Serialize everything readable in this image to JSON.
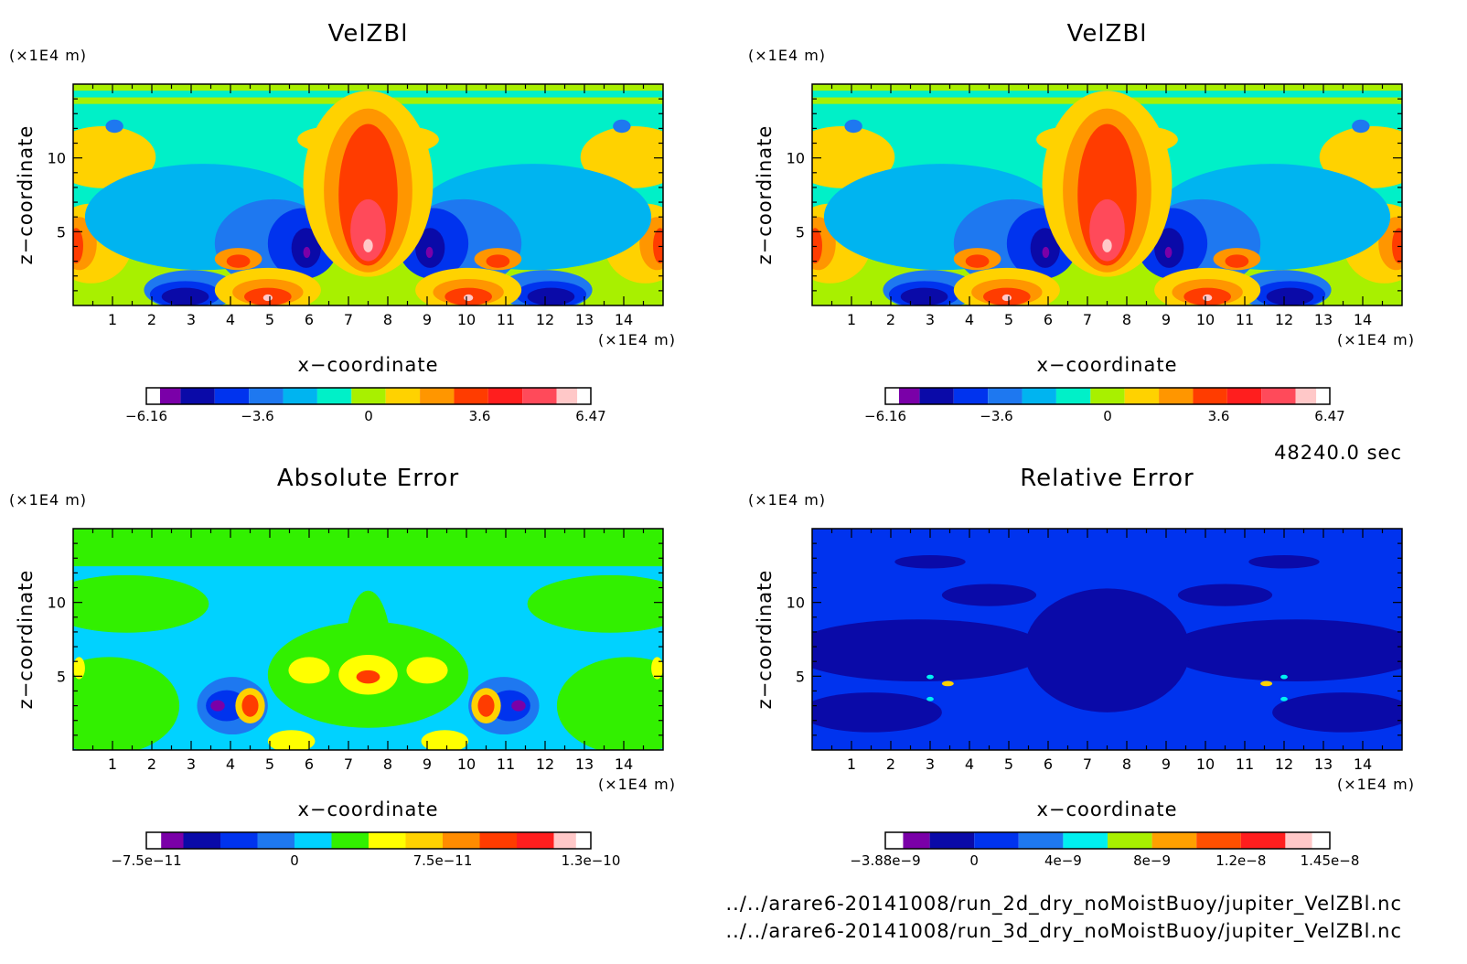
{
  "time_label": "48240.0 sec",
  "files": [
    "../../arare6-20141008/run_2d_dry_noMoistBuoy/jupiter_VelZBl.nc",
    "../../arare6-20141008/run_3d_dry_noMoistBuoy/jupiter_VelZBl.nc"
  ],
  "chart_data": [
    {
      "type": "heatmap",
      "title": "VelZBl",
      "xlabel": "x−coordinate",
      "ylabel": "z−coordinate",
      "x_unit": "(×1E4 m)",
      "y_unit": "(×1E4 m)",
      "xlim": [
        0,
        15
      ],
      "ylim": [
        0,
        15
      ],
      "x_ticks": [
        "1",
        "2",
        "3",
        "4",
        "5",
        "6",
        "7",
        "8",
        "9",
        "10",
        "11",
        "12",
        "13",
        "14"
      ],
      "y_ticks": [
        "5",
        "10"
      ],
      "colorbar": {
        "colors": [
          "#7a00a8",
          "#0a0aa8",
          "#0033ee",
          "#1e78f0",
          "#00b4f0",
          "#00f0c8",
          "#a8f000",
          "#ffd200",
          "#ff9600",
          "#ff3c00",
          "#ff1e1e",
          "#ff4a5a",
          "#ffc8c8"
        ],
        "tick_labels": [
          "−6.16",
          "−3.6",
          "0",
          "3.6",
          "6.47"
        ]
      },
      "field": "velzbl"
    },
    {
      "type": "heatmap",
      "title": "VelZBl",
      "xlabel": "x−coordinate",
      "ylabel": "z−coordinate",
      "x_unit": "(×1E4 m)",
      "y_unit": "(×1E4 m)",
      "xlim": [
        0,
        15
      ],
      "ylim": [
        0,
        15
      ],
      "x_ticks": [
        "1",
        "2",
        "3",
        "4",
        "5",
        "6",
        "7",
        "8",
        "9",
        "10",
        "11",
        "12",
        "13",
        "14"
      ],
      "y_ticks": [
        "5",
        "10"
      ],
      "colorbar": {
        "colors": [
          "#7a00a8",
          "#0a0aa8",
          "#0033ee",
          "#1e78f0",
          "#00b4f0",
          "#00f0c8",
          "#a8f000",
          "#ffd200",
          "#ff9600",
          "#ff3c00",
          "#ff1e1e",
          "#ff4a5a",
          "#ffc8c8"
        ],
        "tick_labels": [
          "−6.16",
          "−3.6",
          "0",
          "3.6",
          "6.47"
        ]
      },
      "field": "velzbl"
    },
    {
      "type": "heatmap",
      "title": "Absolute Error",
      "xlabel": "x−coordinate",
      "ylabel": "z−coordinate",
      "x_unit": "(×1E4 m)",
      "y_unit": "(×1E4 m)",
      "xlim": [
        0,
        15
      ],
      "ylim": [
        0,
        15
      ],
      "x_ticks": [
        "1",
        "2",
        "3",
        "4",
        "5",
        "6",
        "7",
        "8",
        "9",
        "10",
        "11",
        "12",
        "13",
        "14"
      ],
      "y_ticks": [
        "5",
        "10"
      ],
      "colorbar": {
        "colors": [
          "#7a00a8",
          "#0a0aa8",
          "#0033ee",
          "#1e78f0",
          "#00d2ff",
          "#32f000",
          "#ffff00",
          "#ffd200",
          "#ff8c00",
          "#ff3c00",
          "#ff1e1e",
          "#ffc8c8"
        ],
        "tick_labels": [
          "−7.5e−11",
          "0",
          "7.5e−11",
          "1.3e−10"
        ]
      },
      "field": "abs"
    },
    {
      "type": "heatmap",
      "title": "Relative Error",
      "xlabel": "x−coordinate",
      "ylabel": "z−coordinate",
      "x_unit": "(×1E4 m)",
      "y_unit": "(×1E4 m)",
      "xlim": [
        0,
        15
      ],
      "ylim": [
        0,
        15
      ],
      "x_ticks": [
        "1",
        "2",
        "3",
        "4",
        "5",
        "6",
        "7",
        "8",
        "9",
        "10",
        "11",
        "12",
        "13",
        "14"
      ],
      "y_ticks": [
        "5",
        "10"
      ],
      "colorbar": {
        "colors": [
          "#7a00a8",
          "#0a0aa8",
          "#0033ee",
          "#1e78f0",
          "#00f0f0",
          "#a8f000",
          "#ffa000",
          "#ff5000",
          "#ff1e1e",
          "#ffc8c8"
        ],
        "tick_labels": [
          "−3.88e−9",
          "0",
          "4e−9",
          "8e−9",
          "1.2e−8",
          "1.45e−8"
        ]
      },
      "field": "rel"
    }
  ]
}
